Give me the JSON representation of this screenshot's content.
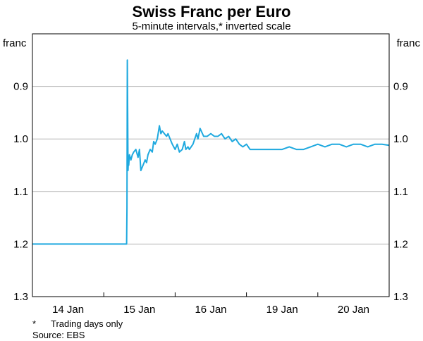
{
  "chart_data": {
    "type": "line",
    "title": "Swiss Franc per Euro",
    "subtitle": "5-minute intervals,* inverted scale",
    "unit_left": "franc",
    "unit_right": "franc",
    "y_inverted": true,
    "ylim": [
      0.8,
      1.3
    ],
    "yticks": [
      0.9,
      1.0,
      1.1,
      1.2,
      1.3
    ],
    "ytick_labels": [
      "0.9",
      "1.0",
      "1.1",
      "1.2",
      "1.3"
    ],
    "xlim": [
      0,
      5
    ],
    "x_categories": [
      "14 Jan",
      "15 Jan",
      "16 Jan",
      "19 Jan",
      "20 Jan"
    ],
    "grid": true,
    "line_color": "#1fa9df",
    "series": [
      {
        "x": [
          0,
          0.3,
          0.6,
          0.9,
          1.2,
          1.3,
          1.32,
          1.325,
          1.33,
          1.335,
          1.34,
          1.345,
          1.35,
          1.36,
          1.38,
          1.4,
          1.42,
          1.45,
          1.48,
          1.5,
          1.52,
          1.55,
          1.58,
          1.6,
          1.62,
          1.65,
          1.68,
          1.7,
          1.72,
          1.75,
          1.78,
          1.8,
          1.82,
          1.85,
          1.88,
          1.9,
          1.93,
          1.96,
          2.0,
          2.03,
          2.06,
          2.1,
          2.13,
          2.15,
          2.18,
          2.2,
          2.25,
          2.3,
          2.32,
          2.35,
          2.4,
          2.45,
          2.5,
          2.55,
          2.6,
          2.65,
          2.7,
          2.75,
          2.8,
          2.85,
          2.9,
          2.95,
          3.0,
          3.05,
          3.1,
          3.2,
          3.3,
          3.4,
          3.5,
          3.6,
          3.7,
          3.8,
          3.9,
          4.0,
          4.1,
          4.2,
          4.3,
          4.4,
          4.5,
          4.6,
          4.7,
          4.8,
          4.9,
          5.0
        ],
        "y": [
          1.2,
          1.2,
          1.2,
          1.2,
          1.2,
          1.2,
          1.2,
          1.13,
          0.85,
          0.95,
          1.06,
          1.04,
          1.05,
          1.03,
          1.04,
          1.03,
          1.025,
          1.02,
          1.035,
          1.02,
          1.06,
          1.05,
          1.04,
          1.045,
          1.03,
          1.02,
          1.025,
          1.005,
          1.01,
          1.0,
          0.975,
          0.99,
          0.985,
          0.99,
          0.995,
          0.99,
          1.0,
          1.01,
          1.02,
          1.01,
          1.025,
          1.02,
          1.005,
          1.02,
          1.015,
          1.02,
          1.01,
          0.99,
          1.0,
          0.98,
          0.995,
          0.995,
          0.99,
          0.995,
          0.995,
          0.99,
          1.0,
          0.995,
          1.005,
          1.0,
          1.01,
          1.015,
          1.01,
          1.02,
          1.02,
          1.02,
          1.02,
          1.02,
          1.02,
          1.015,
          1.02,
          1.02,
          1.015,
          1.01,
          1.015,
          1.01,
          1.01,
          1.015,
          1.01,
          1.01,
          1.015,
          1.01,
          1.01,
          1.012
        ]
      }
    ]
  },
  "notes": {
    "footnote_marker": "*",
    "footnote": "Trading days only",
    "source": "Source: EBS"
  }
}
